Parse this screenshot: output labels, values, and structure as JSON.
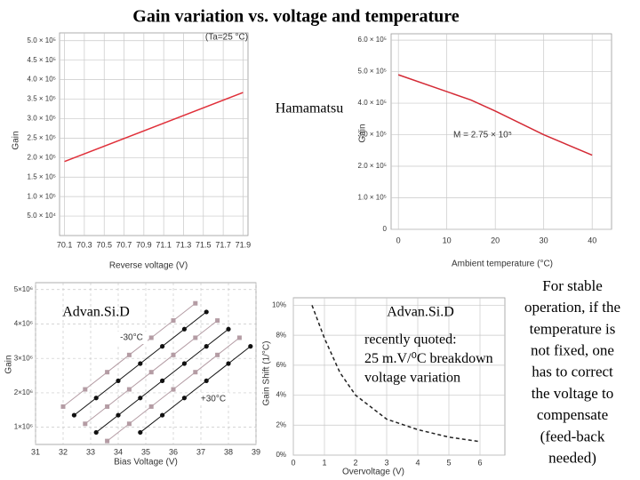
{
  "slide": {
    "title": "Gain variation vs. voltage and temperature",
    "hamamatsu": "Hamamatsu",
    "advansid_left": "Advan.Si.D",
    "advansid_right": "Advan.Si.D",
    "quote": [
      "recently quoted:",
      "25 m.V/⁰C breakdown",
      "voltage variation"
    ],
    "note": [
      "For stable",
      "operation, if the",
      "temperature is",
      "not fixed, one",
      "has to correct",
      "the voltage to",
      "compensate",
      "(feed-back",
      "needed)"
    ]
  },
  "chart_data": [
    {
      "type": "line",
      "x_label": "Reverse voltage (V)",
      "y_label": "Gain",
      "annotations": [
        "(Ta=25 °C)"
      ],
      "xlim": [
        70.05,
        71.95
      ],
      "xticks": [
        70.1,
        70.3,
        70.5,
        70.7,
        70.9,
        71.1,
        71.3,
        71.5,
        71.7,
        71.9
      ],
      "ylim": [
        0,
        520000
      ],
      "yticks": [
        {
          "value": 50000,
          "label": "5.0 × 10⁴"
        },
        {
          "value": 100000,
          "label": "1.0 × 10⁵"
        },
        {
          "value": 150000,
          "label": "1.5 × 10⁵"
        },
        {
          "value": 200000,
          "label": "2.0 × 10⁵"
        },
        {
          "value": 250000,
          "label": "2.5 × 10⁵"
        },
        {
          "value": 300000,
          "label": "3.0 × 10⁵"
        },
        {
          "value": 350000,
          "label": "3.5 × 10⁵"
        },
        {
          "value": 400000,
          "label": "4.0 × 10⁵"
        },
        {
          "value": 450000,
          "label": "4.5 × 10⁵"
        },
        {
          "value": 500000,
          "label": "5.0 × 10⁵"
        }
      ],
      "grid": true,
      "grid_style": "solid",
      "series": [
        {
          "color": "#e0303a",
          "x": [
            70.1,
            71.9
          ],
          "values": [
            190000,
            367000
          ]
        }
      ]
    },
    {
      "type": "line",
      "x_label": "Ambient temperature (°C)",
      "y_label": "Gain",
      "annotations": [
        "M = 2.75 × 10⁵"
      ],
      "xlim": [
        -1.5,
        44
      ],
      "xticks": [
        0,
        10,
        20,
        30,
        40
      ],
      "ylim": [
        0,
        620000
      ],
      "yticks": [
        0,
        {
          "value": 100000,
          "label": "1.0 × 10⁵"
        },
        {
          "value": 200000,
          "label": "2.0 × 10⁵"
        },
        {
          "value": 300000,
          "label": "3.0 × 10⁵"
        },
        {
          "value": 400000,
          "label": "4.0 × 10⁵"
        },
        {
          "value": 500000,
          "label": "5.0 × 10⁵"
        },
        {
          "value": 600000,
          "label": "6.0 × 10⁵"
        }
      ],
      "grid": true,
      "grid_style": "solid",
      "series": [
        {
          "color": "#d42a35",
          "x": [
            0,
            15,
            20,
            30,
            40
          ],
          "values": [
            490000,
            410000,
            375000,
            300000,
            235000
          ]
        }
      ]
    },
    {
      "type": "line",
      "x_label": "Bias Voltage (V)",
      "y_label": "Gain",
      "annotations": [
        "-30°C",
        "+30°C"
      ],
      "xlim": [
        31,
        39
      ],
      "xticks": [
        31,
        32,
        33,
        34,
        35,
        36,
        37,
        38,
        39
      ],
      "ylim": [
        500000,
        5200000
      ],
      "yticks": [
        {
          "value": 1000000,
          "label": "1×10⁶"
        },
        {
          "value": 2000000,
          "label": "2×10⁶"
        },
        {
          "value": 3000000,
          "label": "3×10⁶"
        },
        {
          "value": 4000000,
          "label": "4×10⁶"
        },
        {
          "value": 5000000,
          "label": "5×10⁶"
        }
      ],
      "grid": true,
      "grid_style": "dashed",
      "series": [
        {
          "color": "#b49ca4",
          "marker": "square",
          "x": [
            32,
            32.8,
            33.6,
            34.4,
            35.2,
            36,
            36.8
          ],
          "values": [
            1600000,
            2100000,
            2600000,
            3100000,
            3600000,
            4100000,
            4600000
          ]
        },
        {
          "color": "#111111",
          "marker": "circle",
          "x": [
            32.4,
            33.2,
            34,
            34.8,
            35.6,
            36.4,
            37.2
          ],
          "values": [
            1350000,
            1850000,
            2350000,
            2850000,
            3350000,
            3850000,
            4350000
          ]
        },
        {
          "color": "#b49ca4",
          "marker": "square",
          "x": [
            32.8,
            33.6,
            34.4,
            35.2,
            36,
            36.8,
            37.6
          ],
          "values": [
            1100000,
            1600000,
            2100000,
            2600000,
            3100000,
            3600000,
            4100000
          ]
        },
        {
          "color": "#111111",
          "marker": "circle",
          "x": [
            33.2,
            34,
            34.8,
            35.6,
            36.4,
            37.2,
            38
          ],
          "values": [
            850000,
            1350000,
            1850000,
            2350000,
            2850000,
            3350000,
            3850000
          ]
        },
        {
          "color": "#b49ca4",
          "marker": "square",
          "x": [
            33.6,
            34.4,
            35.2,
            36,
            36.8,
            37.6,
            38.4
          ],
          "values": [
            600000,
            1100000,
            1600000,
            2100000,
            2600000,
            3100000,
            3600000
          ]
        },
        {
          "color": "#111111",
          "marker": "circle",
          "x": [
            34.8,
            35.6,
            36.4,
            37.2,
            38,
            38.8
          ],
          "values": [
            850000,
            1350000,
            1850000,
            2350000,
            2850000,
            3350000
          ]
        }
      ]
    },
    {
      "type": "line",
      "x_label": "Overvoltage (V)",
      "y_label": "Gain Shift (1/°C)",
      "annotations": [],
      "xlim": [
        0,
        6.8
      ],
      "xticks": [
        0,
        1,
        2,
        3,
        4,
        5,
        6
      ],
      "ylim": [
        0,
        10.5
      ],
      "yticks": [
        {
          "value": 0,
          "label": "0%"
        },
        {
          "value": 2,
          "label": "2%"
        },
        {
          "value": 4,
          "label": "4%"
        },
        {
          "value": 6,
          "label": "6%"
        },
        {
          "value": 8,
          "label": "8%"
        },
        {
          "value": 10,
          "label": "10%"
        }
      ],
      "grid": true,
      "grid_style": "solid",
      "series": [
        {
          "color": "#222222",
          "dash": true,
          "x": [
            0.6,
            1,
            1.5,
            2,
            3,
            4,
            5,
            6
          ],
          "values": [
            10,
            7.8,
            5.5,
            4,
            2.4,
            1.7,
            1.2,
            0.9
          ]
        }
      ]
    }
  ]
}
